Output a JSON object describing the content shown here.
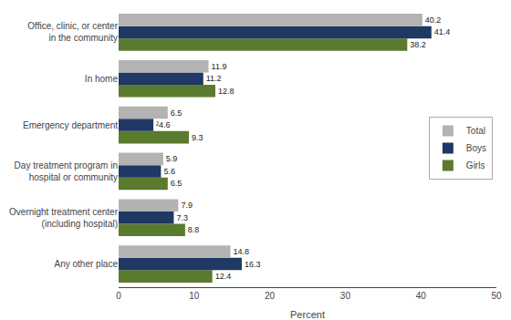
{
  "chart_data": {
    "type": "bar",
    "orientation": "horizontal",
    "categories": [
      "Any other place",
      "Overnight treatment center\n(including hospital)",
      "Day treatment program in\nhospital or community",
      "Emergency department",
      "In home",
      "Office, clinic, or center\nin the community"
    ],
    "series": [
      {
        "name": "Total",
        "color": "#b3b3b3",
        "values": [
          14.8,
          7.9,
          5.9,
          6.5,
          11.9,
          40.2
        ]
      },
      {
        "name": "Boys",
        "color": "#1f3864",
        "values": [
          16.3,
          7.3,
          5.6,
          4.6,
          11.2,
          41.4
        ],
        "value_labels": [
          "16.3",
          "7.3",
          "5.6",
          "²4.6",
          "11.2",
          "41.4"
        ]
      },
      {
        "name": "Girls",
        "color": "#5a7a2e",
        "values": [
          12.4,
          8.8,
          6.5,
          9.3,
          12.8,
          38.2
        ]
      }
    ],
    "xlabel": "Percent",
    "xlim": [
      0,
      50
    ],
    "xticks": [
      0,
      10,
      20,
      30,
      40,
      50
    ],
    "data_labels": true,
    "grid": false,
    "legend": "center right"
  }
}
